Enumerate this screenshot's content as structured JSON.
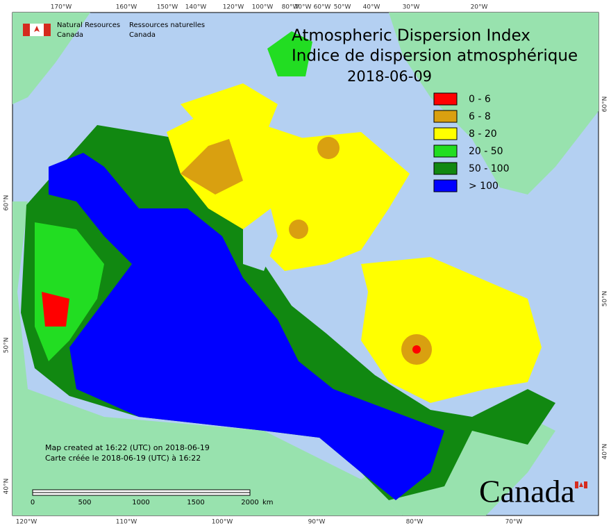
{
  "header": {
    "agency_en": [
      "Natural Resources",
      "Canada"
    ],
    "agency_fr": [
      "Ressources naturelles",
      "Canada"
    ]
  },
  "title": {
    "line1": "Atmospheric Dispersion Index",
    "line2": "Indice de dispersion atmosphérique",
    "date": "2018-06-09"
  },
  "legend": [
    {
      "label": "0 - 6",
      "color": "#ff0000"
    },
    {
      "label": "6 - 8",
      "color": "#d9a010"
    },
    {
      "label": "8 - 20",
      "color": "#ffff00"
    },
    {
      "label": "20 - 50",
      "color": "#22dd22"
    },
    {
      "label": "50 - 100",
      "color": "#118811"
    },
    {
      "label": "> 100",
      "color": "#0000ff"
    }
  ],
  "graticule": {
    "top": [
      "170°W",
      "160°W",
      "150°W",
      "140°W",
      "120°W",
      "100°W",
      "80°W",
      "70°W",
      "60°W",
      "50°W",
      "40°W",
      "30°W",
      "20°W"
    ],
    "bottom": [
      "120°W",
      "110°W",
      "100°W",
      "90°W",
      "80°W",
      "70°W"
    ],
    "left": [
      "60°N",
      "50°N",
      "40°N"
    ],
    "right": [
      "60°N",
      "50°N",
      "40°N"
    ]
  },
  "notes": [
    "Map created at 16:22 (UTC) on 2018-06-19",
    "Carte créée le 2018-06-19 (UTC) à 16:22"
  ],
  "scale_bar": {
    "labels": [
      "0",
      "500",
      "1000",
      "1500",
      "2000"
    ],
    "unit": "km"
  },
  "wordmark": "Canada"
}
